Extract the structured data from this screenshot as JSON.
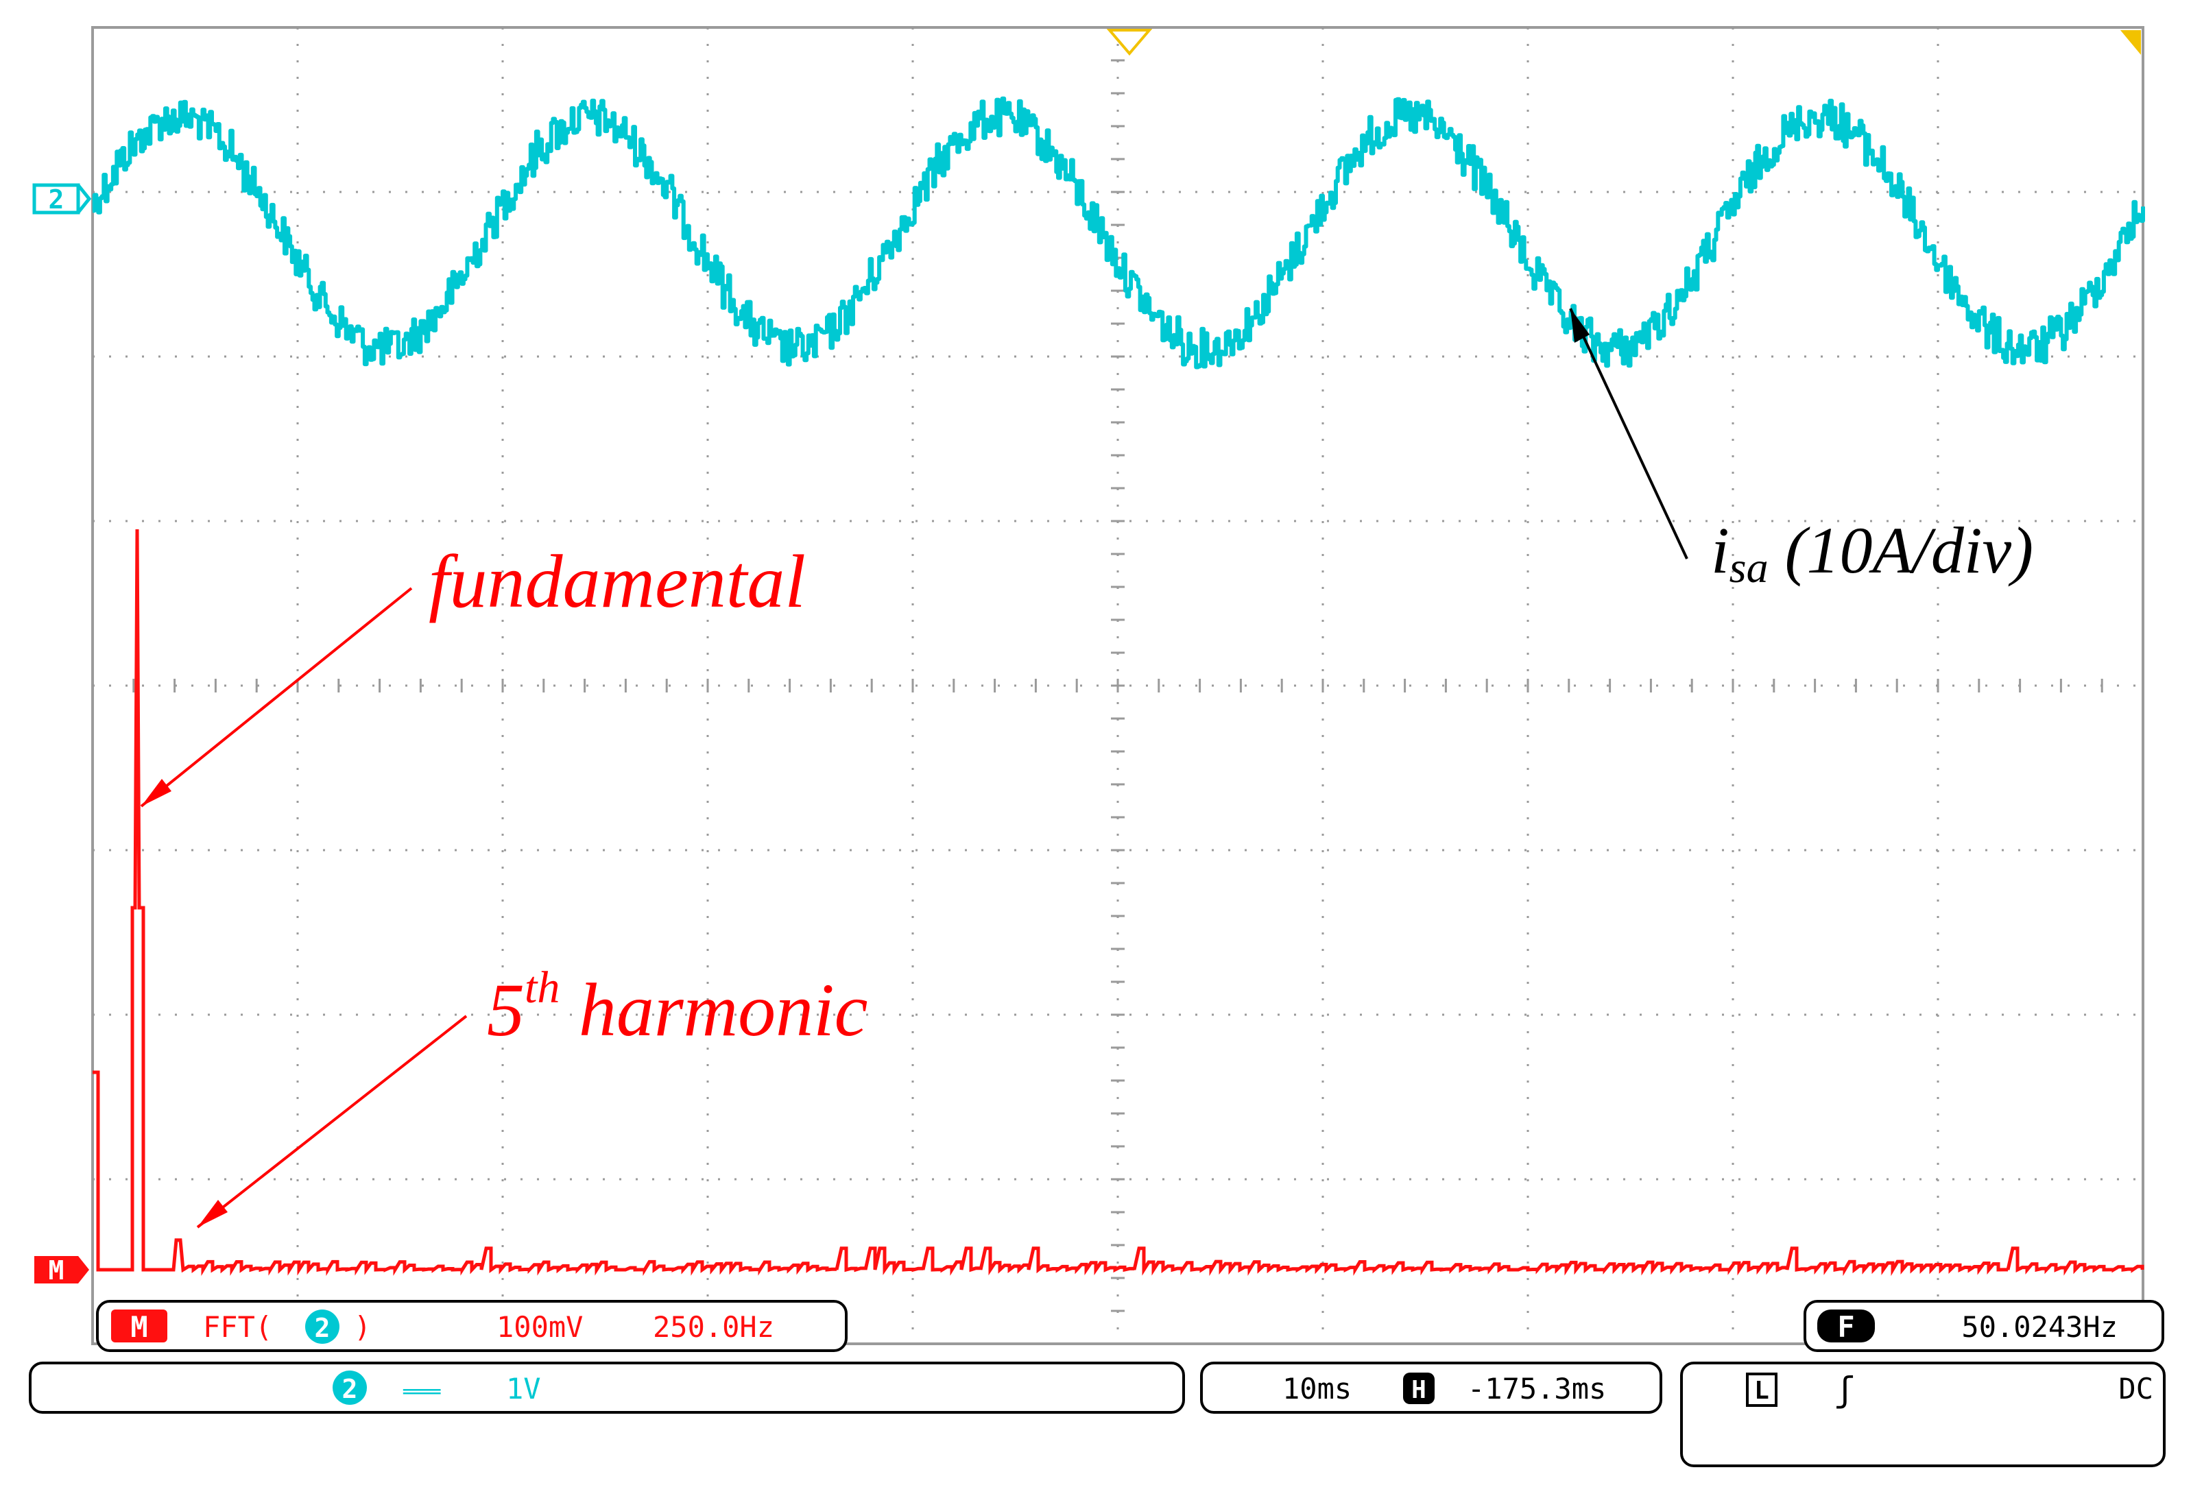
{
  "chart_data": {
    "type": "line",
    "title": "",
    "series": [
      {
        "name": "",
        "description": "channel 2 time-domain current waveform",
        "cycles_on_screen": 5.0,
        "samples_per_cycle": 8,
        "y_divisions_peak": 1.0,
        "noise_ripple_divisions": 0.15
      },
      {
        "name": "",
        "description": "FFT magnitude spectrum of channel 2",
        "dc_level_divisions": 1.2,
        "fundamental_peak_divisions": 4.5,
        "fundamental_secondary_divisions": 2.2,
        "fifth_harmonic_divisions": 0.18,
        "noise_floor_divisions": 0.05
      }
    ],
    "grid": true,
    "divisions": {
      "x": 10,
      "y": 8
    }
  },
  "colors": {
    "channel2": "#00c8d2",
    "math": "#ff1010",
    "grid": "#9a9a9a",
    "annotation_black": "#000000",
    "annotation_red": "#ff0000"
  },
  "markers": {
    "channel2": "2",
    "math": "M"
  },
  "annotations": {
    "current_label_i": "i",
    "current_label_sub": "sa",
    "current_label_rest": " (10A/div)",
    "fundamental": "fundamental",
    "fifth_pre": "5",
    "fifth_sup": "th",
    "fifth_post": " harmonic"
  },
  "status": {
    "math_badge": "M",
    "math_fft": "FFT(",
    "math_source": "2",
    "math_fft_close": ")",
    "math_scale": "100mV",
    "math_freq": "250.0Hz",
    "freq_badge": "F",
    "freq_value": "50.0243Hz",
    "ch_badge": "2",
    "ch_coupling": "═══",
    "ch_scale": "1V",
    "time_scale": "10ms",
    "h_badge": "H",
    "h_position": "-175.3ms",
    "trig_badge": "L",
    "trig_slope": "ʃ",
    "trig_coupling": "DC"
  },
  "icons": {
    "trigger_position": "trigger-position-icon",
    "trigger_level": "trigger-level-icon"
  }
}
